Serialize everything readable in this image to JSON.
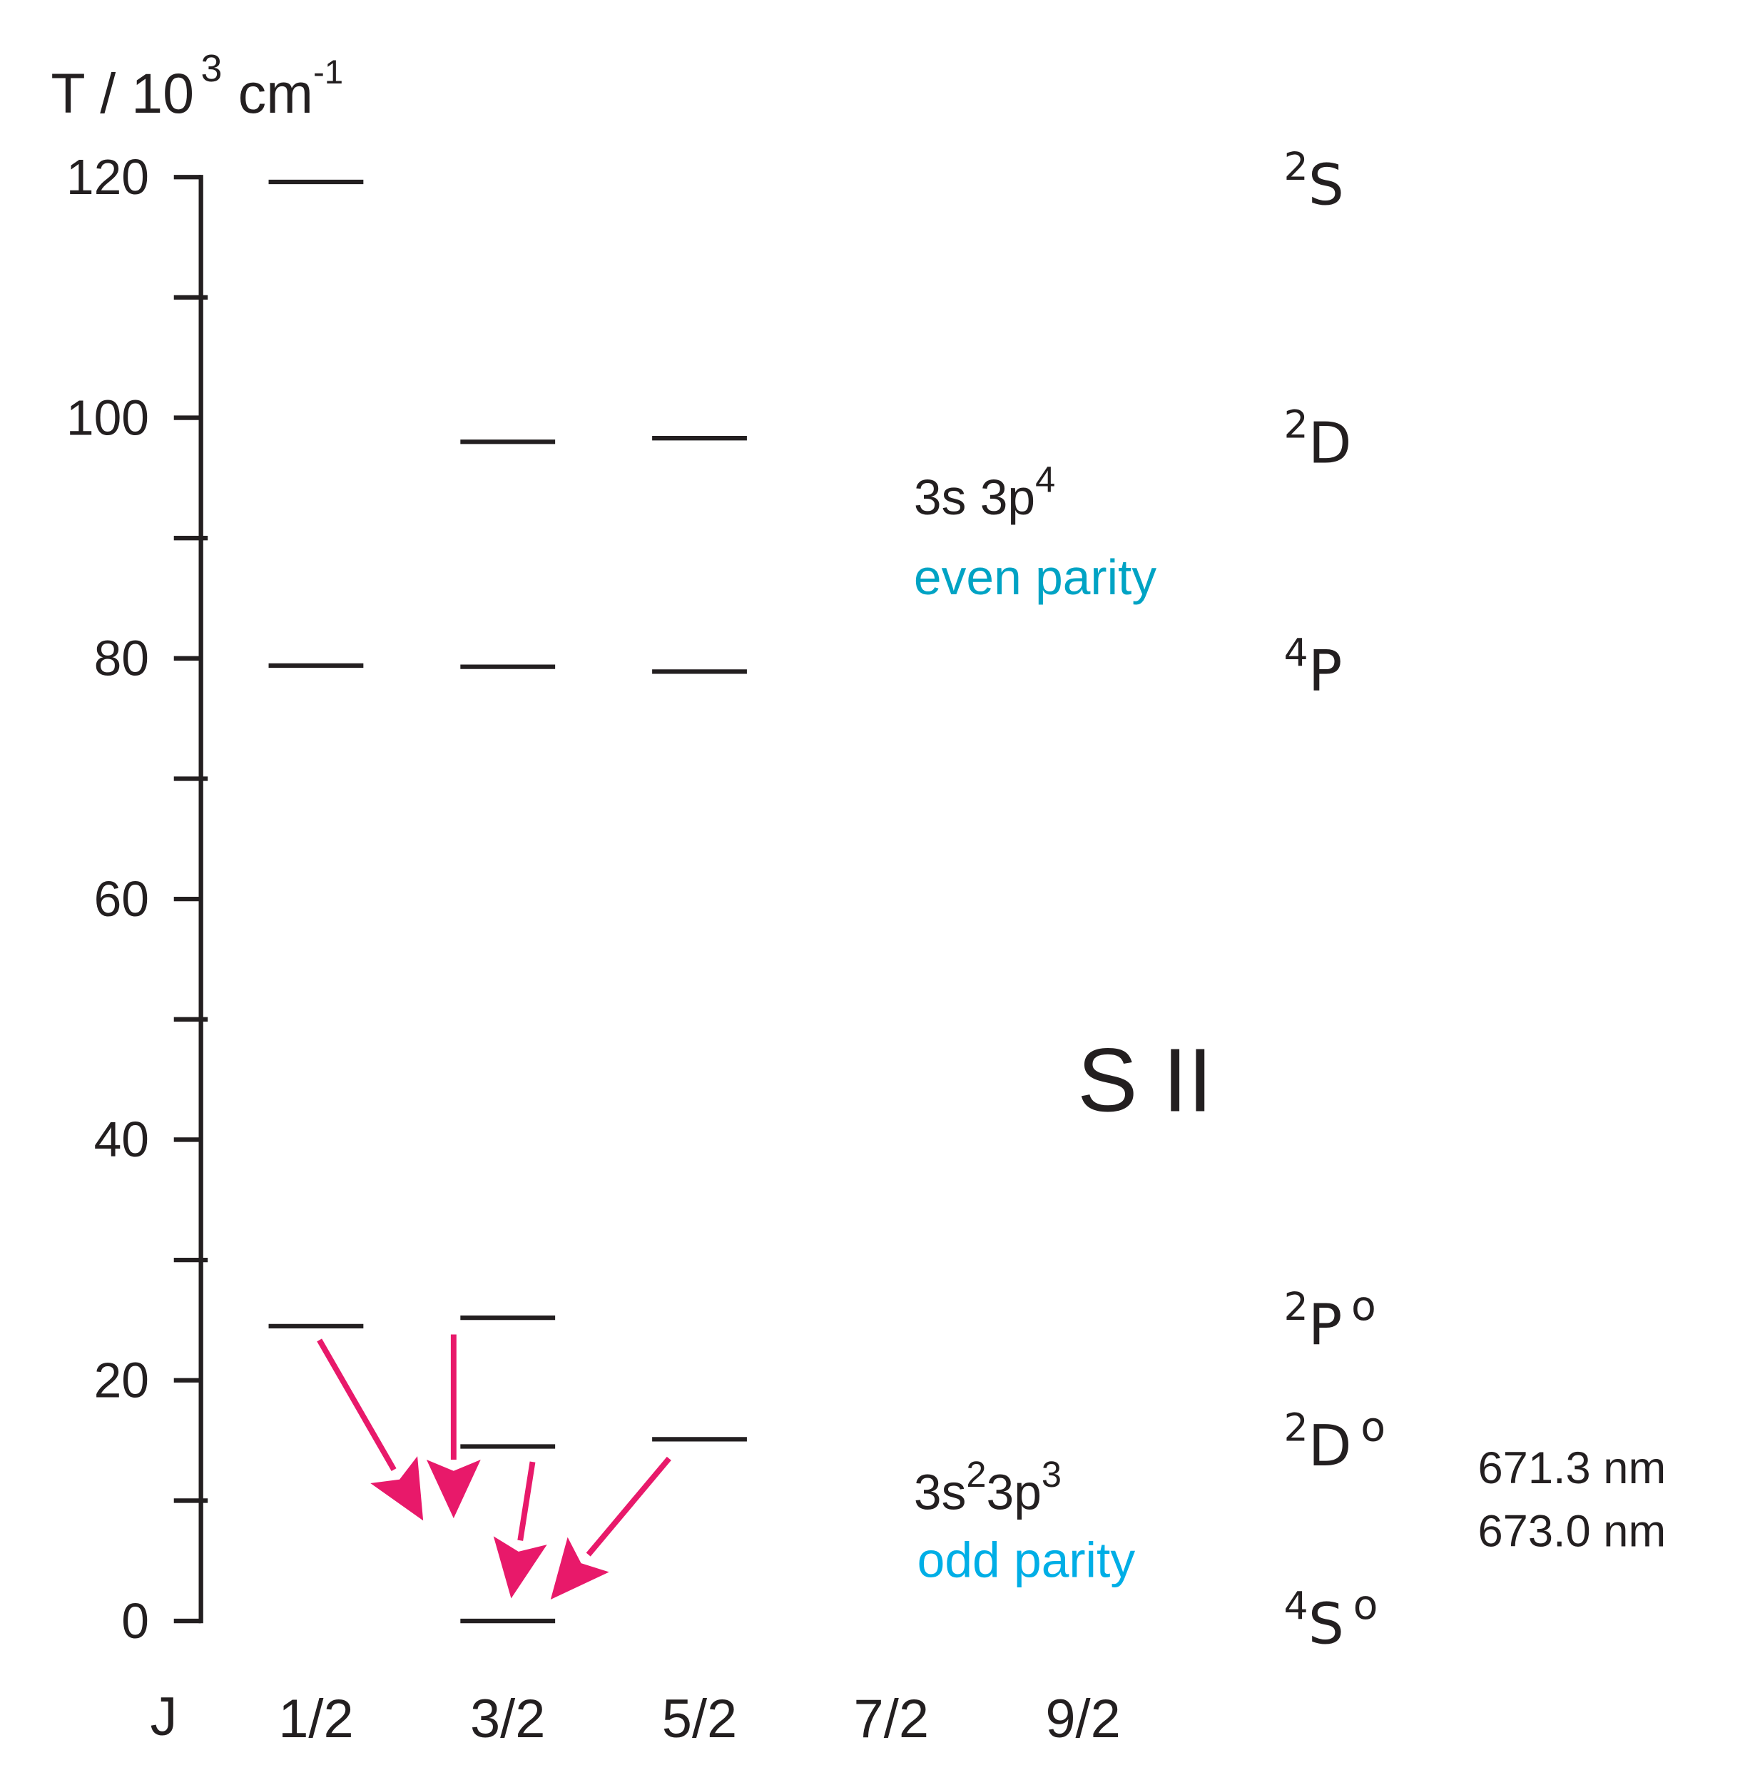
{
  "chart_data": {
    "type": "level",
    "ylabel": {
      "base": "T / 10",
      "exp": "3",
      "unit": "cm",
      "unit_exp": "-1"
    },
    "xlabel": "J",
    "categories": [
      "1/2",
      "3/2",
      "5/2",
      "7/2",
      "9/2"
    ],
    "ylim": [
      0,
      120
    ],
    "yticks": [
      0,
      20,
      40,
      60,
      80,
      100,
      120
    ],
    "minor_yticks": [
      10,
      30,
      50,
      70,
      90,
      110
    ],
    "terms": [
      {
        "mult": "2",
        "letter": "S",
        "values": [
          119.6,
          null,
          null,
          null,
          null
        ]
      },
      {
        "mult": "2",
        "letter": "D",
        "values": [
          null,
          98.0,
          98.3,
          null,
          null
        ]
      },
      {
        "mult": "4",
        "letter": "P",
        "values": [
          79.4,
          79.3,
          78.9,
          null,
          null
        ]
      },
      {
        "mult": "2",
        "letter": "P",
        "parity": "o",
        "values": [
          24.5,
          25.2,
          null,
          null,
          null
        ]
      },
      {
        "mult": "2",
        "letter": "D",
        "parity": "o",
        "values": [
          null,
          14.5,
          15.1,
          null,
          null
        ]
      },
      {
        "mult": "4",
        "letter": "S",
        "parity": "o",
        "values": [
          null,
          0,
          null,
          null,
          null
        ]
      }
    ],
    "configurations": [
      {
        "parts": [
          "3s 3p",
          "4"
        ],
        "parity": "even parity",
        "color": "#00a3c4"
      },
      {
        "parts": [
          "3s",
          "2",
          "3p",
          "3"
        ],
        "parity": "odd parity",
        "color": "#00aee6"
      }
    ],
    "ion": "S II",
    "wavelengths": [
      "671.3 nm",
      "673.0 nm"
    ],
    "level_color": "#231f20",
    "arrow_color": "#e8196a"
  }
}
